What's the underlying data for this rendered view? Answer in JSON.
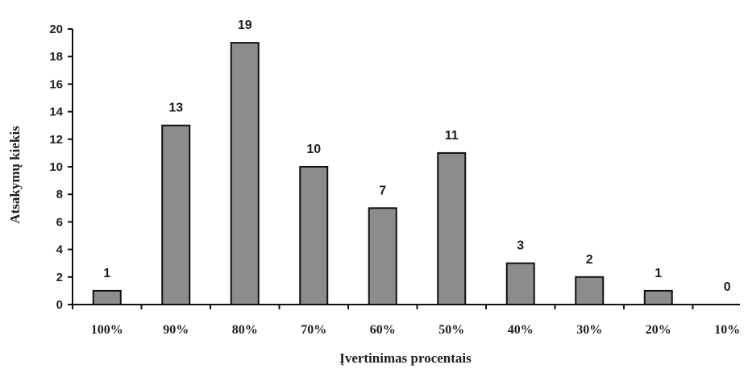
{
  "chart_data": {
    "type": "bar",
    "categories": [
      "100%",
      "90%",
      "80%",
      "70%",
      "60%",
      "50%",
      "40%",
      "30%",
      "20%",
      "10%"
    ],
    "values": [
      1,
      13,
      19,
      10,
      7,
      11,
      3,
      2,
      1,
      0
    ],
    "data_labels": [
      "1",
      "13",
      "19",
      "10",
      "7",
      "11",
      "3",
      "2",
      "1",
      "0"
    ],
    "title": "",
    "xlabel": "Įvertinimas procentais",
    "ylabel": "Atsakymų kiekis",
    "ylim": [
      0,
      20
    ],
    "yticks": [
      "0",
      "2",
      "4",
      "6",
      "8",
      "10",
      "12",
      "14",
      "16",
      "18",
      "20"
    ],
    "grid": false,
    "legend": "none",
    "bar_color": "#8c8c8c"
  }
}
